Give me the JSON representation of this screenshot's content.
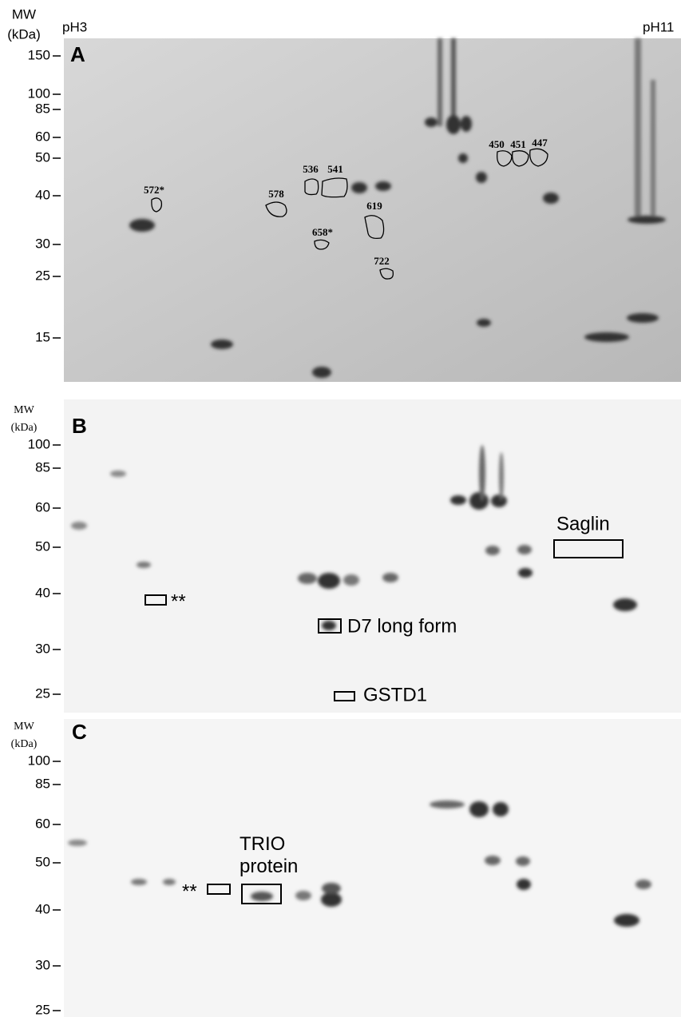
{
  "panels": [
    {
      "label": "A",
      "mw_label": "MW",
      "unit_label": "(kDa)",
      "ph_left": "pH3",
      "ph_right": "pH11",
      "mw_ticks": [
        150,
        100,
        85,
        60,
        50,
        40,
        30,
        25,
        15
      ],
      "spots": [
        "572*",
        "536",
        "541",
        "578",
        "619",
        "658*",
        "722",
        "450",
        "451",
        "447"
      ]
    },
    {
      "label": "B",
      "mw_label": "MW",
      "unit_label": "(kDa)",
      "mw_ticks": [
        100,
        85,
        60,
        50,
        40,
        30,
        25
      ],
      "annotations": [
        "Saglin",
        "**",
        "D7 long form",
        "GSTD1"
      ]
    },
    {
      "label": "C",
      "mw_label": "MW",
      "unit_label": "(kDa)",
      "mw_ticks": [
        100,
        85,
        60,
        50,
        40,
        30,
        25
      ],
      "annotations": [
        "TRIO protein",
        "**"
      ]
    }
  ]
}
